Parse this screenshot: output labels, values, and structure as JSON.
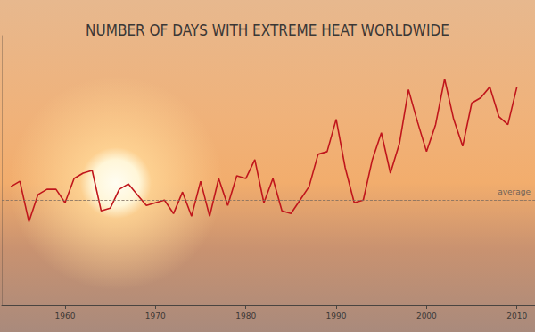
{
  "chart_data": {
    "type": "line",
    "title": "NUMBER OF DAYS WITH EXTREME HEAT WORLDWIDE",
    "x": [
      1954,
      1955,
      1956,
      1957,
      1958,
      1959,
      1960,
      1961,
      1962,
      1963,
      1964,
      1965,
      1966,
      1967,
      1968,
      1969,
      1970,
      1971,
      1972,
      1973,
      1974,
      1975,
      1976,
      1977,
      1978,
      1979,
      1980,
      1981,
      1982,
      1983,
      1984,
      1985,
      1986,
      1987,
      1988,
      1989,
      1990,
      1991,
      1992,
      1993,
      1994,
      1995,
      1996,
      1997,
      1998,
      1999,
      2000,
      2001,
      2002,
      2003,
      2004,
      2005,
      2006,
      2007,
      2008,
      2009,
      2010
    ],
    "values": [
      44,
      46,
      31,
      41,
      43,
      43,
      38,
      47,
      49,
      50,
      35,
      36,
      43,
      45,
      41,
      37,
      38,
      39,
      34,
      42,
      33,
      46,
      33,
      47,
      37,
      48,
      47,
      54,
      38,
      47,
      35,
      34,
      39,
      44,
      56,
      57,
      69,
      51,
      38,
      39,
      54,
      64,
      49,
      60,
      80,
      68,
      57,
      67,
      84,
      69,
      59,
      75,
      77,
      81,
      70,
      67,
      81
    ],
    "color": "#c0161c",
    "xlim": [
      1953,
      2012
    ],
    "xticks": [
      1960,
      1970,
      1980,
      1990,
      2000,
      2010
    ],
    "ylim": [
      0,
      100
    ],
    "tick_labels": "x",
    "grid": false,
    "annotations": [
      {
        "text": "average",
        "y": 39
      }
    ]
  }
}
